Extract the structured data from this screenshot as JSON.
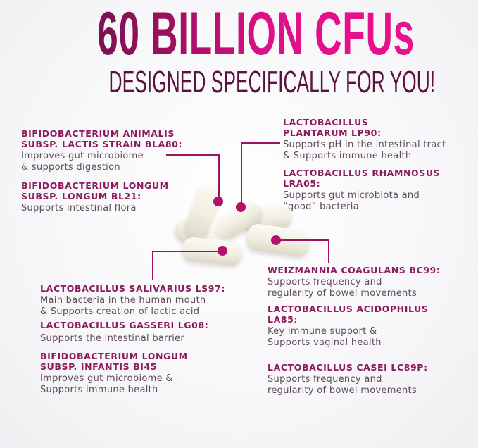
{
  "header": {
    "title": "60 BILLION CFUs",
    "subtitle": "DESIGNED SPECIFICALLY FOR YOU!"
  },
  "colors": {
    "title_start": "#7a1250",
    "title_end": "#e8108e",
    "heading": "#8c1a5e",
    "body": "#5e4a5c",
    "callout": "#b4106c"
  },
  "strains": [
    {
      "heading": [
        "BIFIDOBACTERIUM ANIMALIS",
        "SUBSP. LACTIS STRAIN BLA80:"
      ],
      "body": [
        "Improves gut microbiome",
        "& supports digestion"
      ]
    },
    {
      "heading": [
        "BIFIDOBACTERIUM LONGUM",
        "SUBSP. LONGUM BL21:"
      ],
      "body": [
        "Supports intestinal flora"
      ]
    },
    {
      "heading": [
        "LACTOBACILLUS",
        "PLANTARUM LP90:"
      ],
      "body": [
        "Supports pH in the intestinal tract",
        "& Supports immune health"
      ]
    },
    {
      "heading": [
        "LACTOBACILLUS RHAMNOSUS",
        "LRA05:"
      ],
      "body": [
        "Supports gut microbiota and",
        "“good” bacteria"
      ]
    },
    {
      "heading": [
        "WEIZMANNIA COAGULANS BC99:"
      ],
      "body": [
        "Supports frequency and",
        "regularity of bowel movements"
      ]
    },
    {
      "heading": [
        "LACTOBACILLUS ACIDOPHILUS",
        "LA85:"
      ],
      "body": [
        "Key immune support &",
        "Supports vaginal health"
      ]
    },
    {
      "heading": [
        "LACTOBACILLUS CASEI LC89P:"
      ],
      "body": [
        "Supports frequency and",
        "regularity of bowel movements"
      ]
    },
    {
      "heading": [
        "LACTOBACILLUS SALIVARIUS LS97:"
      ],
      "body": [
        "Main bacteria in the human mouth",
        "& Supports creation of lactic acid"
      ]
    },
    {
      "heading": [
        "LACTOBACILLUS GASSERI LG08:"
      ],
      "body": [
        "Supports the intestinal barrier"
      ]
    },
    {
      "heading": [
        "BIFIDOBACTERIUM LONGUM",
        "SUBSP. INFANTIS BI45"
      ],
      "body": [
        "Improves gut microbiome &",
        "Supports immune health"
      ]
    }
  ]
}
